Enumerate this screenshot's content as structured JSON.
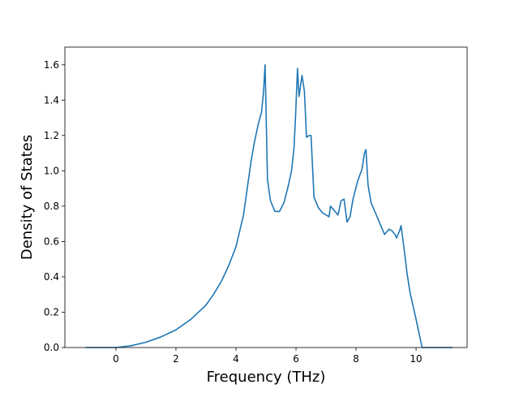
{
  "chart_data": {
    "type": "line",
    "title": "",
    "xlabel": "Frequency (THz)",
    "ylabel": "Density of States",
    "xlim": [
      -1.7,
      11.7
    ],
    "ylim": [
      0.0,
      1.7
    ],
    "xticks": [
      0,
      2,
      4,
      6,
      8,
      10
    ],
    "xtick_labels": [
      "0",
      "2",
      "4",
      "6",
      "8",
      "10"
    ],
    "yticks": [
      0.0,
      0.2,
      0.4,
      0.6,
      0.8,
      1.0,
      1.2,
      1.4,
      1.6
    ],
    "ytick_labels": [
      "0.0",
      "0.2",
      "0.4",
      "0.6",
      "0.8",
      "1.0",
      "1.2",
      "1.4",
      "1.6"
    ],
    "grid": false,
    "legend": null,
    "series": [
      {
        "color": "#1f77b4",
        "x": [
          -1.0,
          0.0,
          0.5,
          1.0,
          1.5,
          2.0,
          2.5,
          3.0,
          3.25,
          3.5,
          3.75,
          4.0,
          4.25,
          4.5,
          4.6,
          4.75,
          4.85,
          4.92,
          4.97,
          5.05,
          5.15,
          5.3,
          5.45,
          5.6,
          5.75,
          5.85,
          5.93,
          5.98,
          6.05,
          6.1,
          6.15,
          6.2,
          6.28,
          6.35,
          6.45,
          6.5,
          6.6,
          6.75,
          6.9,
          7.1,
          7.15,
          7.2,
          7.3,
          7.4,
          7.5,
          7.6,
          7.7,
          7.8,
          7.9,
          8.05,
          8.2,
          8.28,
          8.33,
          8.4,
          8.5,
          8.6,
          8.7,
          8.85,
          8.95,
          9.0,
          9.1,
          9.2,
          9.3,
          9.35,
          9.45,
          9.5,
          9.6,
          9.7,
          9.8,
          10.0,
          10.1,
          10.2,
          11.2
        ],
        "y": [
          0.0,
          0.0,
          0.01,
          0.03,
          0.06,
          0.1,
          0.16,
          0.24,
          0.3,
          0.37,
          0.46,
          0.57,
          0.75,
          1.05,
          1.15,
          1.27,
          1.33,
          1.45,
          1.6,
          0.95,
          0.83,
          0.77,
          0.77,
          0.82,
          0.92,
          1.0,
          1.12,
          1.29,
          1.58,
          1.42,
          1.48,
          1.54,
          1.45,
          1.19,
          1.2,
          1.2,
          0.85,
          0.79,
          0.76,
          0.74,
          0.8,
          0.79,
          0.77,
          0.75,
          0.83,
          0.84,
          0.71,
          0.74,
          0.84,
          0.94,
          1.01,
          1.1,
          1.12,
          0.92,
          0.82,
          0.78,
          0.74,
          0.68,
          0.64,
          0.65,
          0.67,
          0.66,
          0.64,
          0.62,
          0.66,
          0.69,
          0.56,
          0.42,
          0.31,
          0.16,
          0.08,
          0.0,
          0.0
        ]
      }
    ]
  }
}
